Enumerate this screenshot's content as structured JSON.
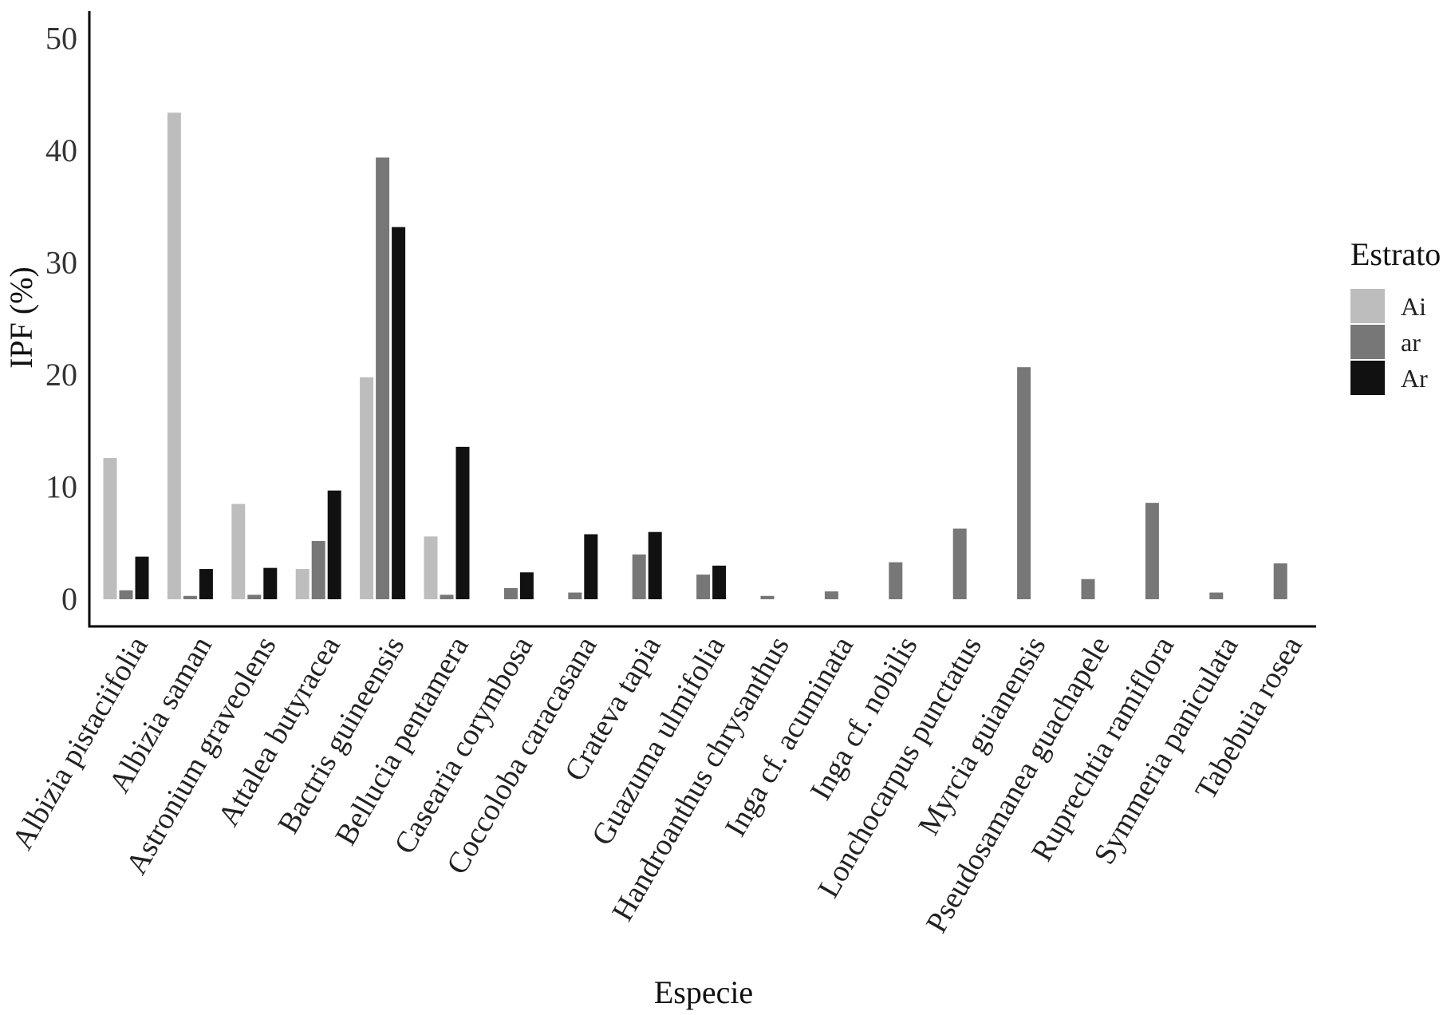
{
  "chart_data": {
    "type": "bar",
    "title": "",
    "xlabel": "Especie",
    "ylabel": "IPF (%)",
    "ylim": [
      0,
      52
    ],
    "yticks": [
      0,
      10,
      20,
      30,
      40,
      50
    ],
    "grid": false,
    "legend": {
      "title": "Estrato",
      "position": "right"
    },
    "categories": [
      "Albizia pistaciifolia",
      "Albizia saman",
      "Astronium graveolens",
      "Attalea butyracea",
      "Bactris guineensis",
      "Bellucia pentamera",
      "Casearia corymbosa",
      "Coccoloba caracasana",
      "Crateva tapia",
      "Guazuma ulmifolia",
      "Handroanthus chrysanthus",
      "Inga cf. acuminata",
      "Inga cf. nobilis",
      "Lonchocarpus punctatus",
      "Myrcia guianensis",
      "Pseudosamanea guachapele",
      "Ruprechtia ramiflora",
      "Symmeria paniculata",
      "Tabebuia rosea"
    ],
    "series": [
      {
        "name": "Ai",
        "color": "#bdbdbd",
        "values": [
          12.6,
          43.4,
          8.5,
          2.7,
          19.8,
          5.6,
          null,
          null,
          null,
          null,
          null,
          null,
          null,
          null,
          null,
          null,
          null,
          null,
          null
        ]
      },
      {
        "name": "ar",
        "color": "#777777",
        "values": [
          0.8,
          0.3,
          0.4,
          5.2,
          39.4,
          0.4,
          1.0,
          0.6,
          4.0,
          2.2,
          0.3,
          0.7,
          3.3,
          6.3,
          20.7,
          1.8,
          8.6,
          0.6,
          3.2
        ]
      },
      {
        "name": "Ar",
        "color": "#111111",
        "values": [
          3.8,
          2.7,
          2.8,
          9.7,
          33.2,
          13.6,
          2.4,
          5.8,
          6.0,
          3.0,
          null,
          null,
          null,
          null,
          null,
          null,
          null,
          null,
          null
        ]
      }
    ]
  }
}
